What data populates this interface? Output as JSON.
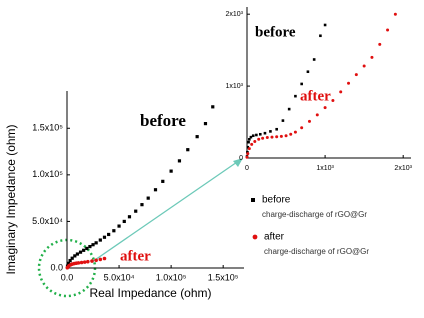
{
  "chart_data": [
    {
      "type": "scatter",
      "x_label": "Real Impedance (ohm)",
      "y_label": "Imaginary Impedance (ohm)",
      "xlim": [
        0,
        170000
      ],
      "ylim": [
        0,
        190000
      ],
      "xticks": [
        {
          "value": 0,
          "label": "0.0"
        },
        {
          "value": 50000,
          "label": "5.0x10⁴"
        },
        {
          "value": 100000,
          "label": "1.0x10⁵"
        },
        {
          "value": 150000,
          "label": "1.5x10⁵"
        }
      ],
      "yticks": [
        {
          "value": 0,
          "label": "0.0"
        },
        {
          "value": 50000,
          "label": "5.0x10⁴"
        },
        {
          "value": 100000,
          "label": "1.0x10⁵"
        },
        {
          "value": 150000,
          "label": "1.5x10⁵"
        }
      ],
      "annotations": [
        {
          "text": "before",
          "color": "#000000"
        },
        {
          "text": "after",
          "color": "#e01010"
        }
      ],
      "series": [
        {
          "name": "before",
          "description": "charge-discharge of rGO@Gr",
          "marker": "square",
          "color": "#000000",
          "x": [
            500,
            1500,
            3000,
            5000,
            7500,
            10000,
            13000,
            16000,
            19000,
            22000,
            25000,
            28000,
            32000,
            36000,
            40000,
            45000,
            50000,
            55000,
            60000,
            66000,
            72000,
            78000,
            85000,
            92000,
            100000,
            108000,
            116000,
            125000,
            133000,
            140000
          ],
          "y": [
            2000,
            5000,
            8000,
            10500,
            13000,
            15000,
            17000,
            19000,
            21000,
            23000,
            25000,
            27000,
            30000,
            33000,
            36000,
            40000,
            45000,
            50000,
            55000,
            61000,
            68000,
            75000,
            84000,
            93000,
            104000,
            115000,
            127000,
            141000,
            155000,
            173000
          ]
        },
        {
          "name": "after",
          "description": "charge-discharge of rGO@Gr",
          "marker": "circle",
          "color": "#e01010",
          "x": [
            300,
            1000,
            2000,
            3500,
            5000,
            7000,
            9000,
            11000,
            14000,
            17000,
            20000,
            24000,
            28000,
            32000,
            36000
          ],
          "y": [
            300,
            1200,
            2500,
            3500,
            4200,
            4800,
            5200,
            5500,
            5900,
            6300,
            6800,
            7500,
            8300,
            9200,
            10200
          ]
        }
      ]
    },
    {
      "type": "scatter",
      "xlim": [
        0,
        2100
      ],
      "ylim": [
        0,
        2100
      ],
      "xticks": [
        0,
        {
          "value": 1000,
          "label": "1x10³"
        },
        {
          "value": 2000,
          "label": "2x10³"
        }
      ],
      "yticks": [
        0,
        {
          "value": 1000,
          "label": "1x10³"
        },
        {
          "value": 2000,
          "label": "2x10³"
        }
      ],
      "annotations": [
        {
          "text": "before",
          "color": "#000000"
        },
        {
          "text": "after",
          "color": "#e01010"
        }
      ],
      "series": [
        {
          "marker": "square",
          "color": "#000000",
          "x": [
            0,
            5,
            10,
            20,
            30,
            50,
            80,
            120,
            170,
            230,
            300,
            380,
            460,
            540,
            620,
            700,
            780,
            860,
            940,
            1000
          ],
          "y": [
            20,
            80,
            150,
            220,
            260,
            290,
            310,
            320,
            330,
            345,
            370,
            400,
            520,
            680,
            860,
            1030,
            1200,
            1370,
            1700,
            1850
          ]
        },
        {
          "marker": "circle",
          "color": "#e01010",
          "x": [
            0,
            10,
            30,
            60,
            100,
            150,
            200,
            260,
            320,
            380,
            440,
            500,
            560,
            620,
            700,
            800,
            900,
            1000,
            1100,
            1200,
            1300,
            1400,
            1500,
            1600,
            1700,
            1800,
            1900
          ],
          "y": [
            10,
            60,
            130,
            190,
            230,
            260,
            275,
            285,
            290,
            295,
            300,
            310,
            330,
            360,
            420,
            510,
            600,
            700,
            800,
            920,
            1040,
            1160,
            1280,
            1400,
            1580,
            1780,
            2000
          ]
        }
      ]
    }
  ]
}
